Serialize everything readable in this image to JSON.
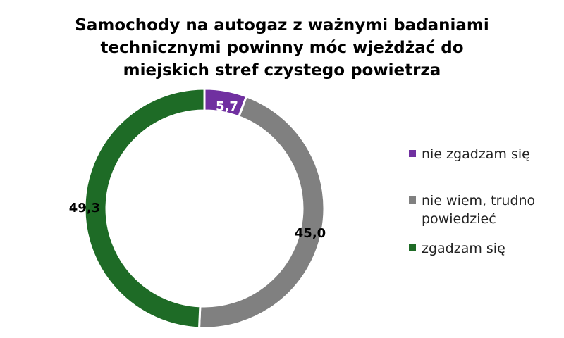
{
  "chart_data": {
    "type": "pie",
    "donut": true,
    "title_lines": [
      "Samochody na autogaz z ważnymi badaniami",
      "technicznymi powinny móc wjeżdżać do",
      "miejskich stref czystego powietrza"
    ],
    "categories": [
      "nie zgadzam się",
      "nie wiem, trudno powiedzieć",
      "zgadzam się"
    ],
    "values": [
      5.7,
      45.0,
      49.3
    ],
    "data_labels": [
      "5,7",
      "45,0",
      "49,3"
    ],
    "colors": [
      "#7030A0",
      "#808080",
      "#1E6B26"
    ],
    "label_colors": [
      "#ffffff",
      "#000000",
      "#000000"
    ],
    "legend_position": "right",
    "legend_lines": [
      [
        "nie zgadzam się"
      ],
      [
        "nie wiem, trudno",
        "powiedzieć"
      ],
      [
        "zgadzam się"
      ]
    ]
  }
}
